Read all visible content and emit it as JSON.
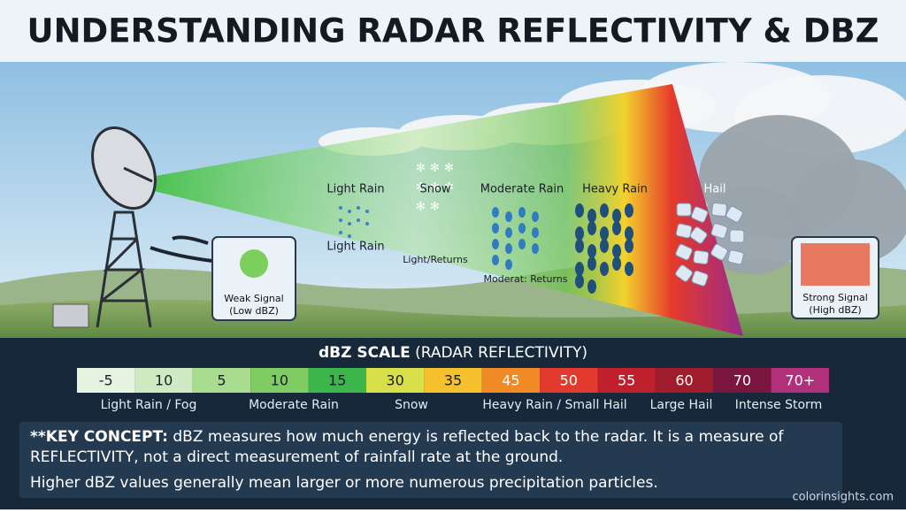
{
  "header": {
    "title": "UNDERSTANDING RADAR REFLECTIVITY & DBZ"
  },
  "beam_labels": {
    "light_rain": "Light Rain",
    "snow": "Snow",
    "moderate_rain": "Moderate Rain",
    "heavy_rain": "Heavy Rain",
    "hail": "Hail",
    "light_rain_2": "Light Rain",
    "light_returns": "Light/Returns",
    "moderate_returns": "Moderat: Returns"
  },
  "weak_signal": {
    "line1": "Weak Signal",
    "line2": "(Low dBZ)"
  },
  "strong_signal": {
    "line1": "Strong Signal",
    "line2": "(High dBZ)"
  },
  "scale": {
    "title_bold": "dBZ SCALE",
    "title_rest": "(RADAR REFLECTIVITY)",
    "cells": [
      {
        "label": "-5",
        "color": "#e6f3e0"
      },
      {
        "label": "10",
        "color": "#cfe9c2"
      },
      {
        "label": "5",
        "color": "#a9dc8e"
      },
      {
        "label": "10",
        "color": "#7fcc63"
      },
      {
        "label": "15",
        "color": "#3cb54a"
      },
      {
        "label": "30",
        "color": "#d7e04a"
      },
      {
        "label": "35",
        "color": "#f6c12c"
      },
      {
        "label": "45",
        "color": "#f08a24"
      },
      {
        "label": "50",
        "color": "#e23b2e"
      },
      {
        "label": "55",
        "color": "#c0202b"
      },
      {
        "label": "60",
        "color": "#a01c2c"
      },
      {
        "label": "70",
        "color": "#7a1640"
      },
      {
        "label": "70+",
        "color": "#b0307a"
      }
    ],
    "categories": [
      "Light Rain / Fog",
      "Moderate Rain",
      "Snow",
      "Heavy Rain / Small Hail",
      "Large Hail",
      "Intense Storm"
    ]
  },
  "key_concept": {
    "label": "**KEY CONCEPT:",
    "line1": "dBZ measures how much energy is reflected back to the radar. It is a measure of",
    "line2": "REFLECTIVITY, not a direct measurement of rainfall rate at the ground.",
    "line3": "Higher dBZ values generally mean larger or more numerous precipitation particles."
  },
  "footer": {
    "credit": "colorinsights.com"
  }
}
